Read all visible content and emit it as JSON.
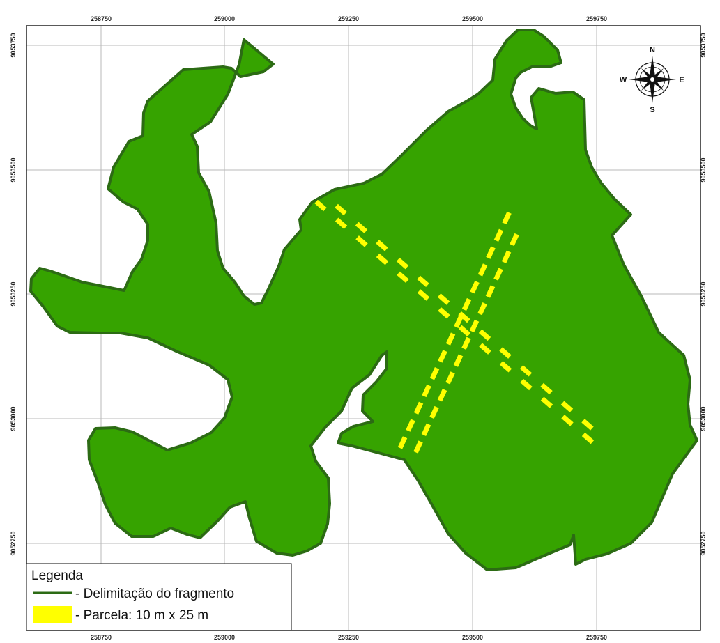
{
  "map": {
    "x_ticks": [
      "258750",
      "259000",
      "259250",
      "259500",
      "259750"
    ],
    "y_ticks": [
      "9053750",
      "9053500",
      "9053250",
      "9053000",
      "9052750"
    ],
    "colors": {
      "fragment_fill": "#36a300",
      "fragment_stroke": "#2c6b14",
      "plot": "#ffff00",
      "grid": "#b9b9b9",
      "frame": "#222222"
    }
  },
  "north_arrow": {
    "icon": "compass-rose-icon",
    "n": "N",
    "s": "S",
    "e": "E",
    "w": "W"
  },
  "legend": {
    "title": "Legenda",
    "items": [
      {
        "symbol": "dark-green-line",
        "label": "- Delimitação do fragmento"
      },
      {
        "symbol": "yellow-rectangle",
        "label": "- Parcela: 10 m x 25 m"
      }
    ]
  }
}
